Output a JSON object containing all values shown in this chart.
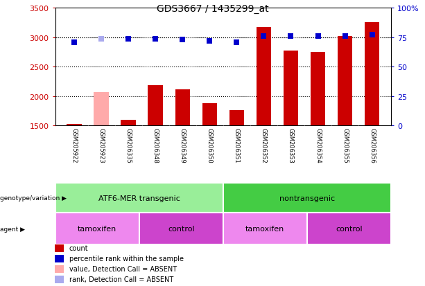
{
  "title": "GDS3667 / 1435299_at",
  "samples": [
    "GSM205922",
    "GSM205923",
    "GSM206335",
    "GSM206348",
    "GSM206349",
    "GSM206350",
    "GSM206351",
    "GSM206352",
    "GSM206353",
    "GSM206354",
    "GSM206355",
    "GSM206356"
  ],
  "counts": [
    1520,
    2070,
    1600,
    2190,
    2110,
    1880,
    1760,
    3170,
    2780,
    2750,
    3020,
    3260
  ],
  "count_absent": [
    false,
    true,
    false,
    false,
    false,
    false,
    false,
    false,
    false,
    false,
    false,
    false
  ],
  "percentile_ranks": [
    71,
    74,
    74,
    74,
    73,
    72,
    71,
    76,
    76,
    76,
    76,
    77
  ],
  "rank_absent": [
    false,
    true,
    false,
    false,
    false,
    false,
    false,
    false,
    false,
    false,
    false,
    false
  ],
  "ylim_left": [
    1500,
    3500
  ],
  "ylim_right": [
    0,
    100
  ],
  "yticks_left": [
    1500,
    2000,
    2500,
    3000,
    3500
  ],
  "yticks_right": [
    0,
    25,
    50,
    75,
    100
  ],
  "yticklabels_right": [
    "0",
    "25",
    "50",
    "75",
    "100%"
  ],
  "bar_color_normal": "#cc0000",
  "bar_color_absent": "#ffaaaa",
  "dot_color_normal": "#0000cc",
  "dot_color_absent": "#aaaaee",
  "dot_size": 30,
  "groups": [
    {
      "label": "ATF6-MER transgenic",
      "start": 0,
      "end": 6,
      "color": "#99ee99"
    },
    {
      "label": "nontransgenic",
      "start": 6,
      "end": 12,
      "color": "#44cc44"
    }
  ],
  "agents": [
    {
      "label": "tamoxifen",
      "start": 0,
      "end": 3,
      "color": "#ee88ee"
    },
    {
      "label": "control",
      "start": 3,
      "end": 6,
      "color": "#cc44cc"
    },
    {
      "label": "tamoxifen",
      "start": 6,
      "end": 9,
      "color": "#ee88ee"
    },
    {
      "label": "control",
      "start": 9,
      "end": 12,
      "color": "#cc44cc"
    }
  ],
  "legend_items": [
    {
      "label": "count",
      "color": "#cc0000"
    },
    {
      "label": "percentile rank within the sample",
      "color": "#0000cc"
    },
    {
      "label": "value, Detection Call = ABSENT",
      "color": "#ffaaaa"
    },
    {
      "label": "rank, Detection Call = ABSENT",
      "color": "#aaaaee"
    }
  ],
  "left_label_color": "#cc0000",
  "right_label_color": "#0000cc",
  "bar_width": 0.55,
  "bg_color": "#ffffff",
  "label_bg_color": "#cccccc",
  "grid_color": "#000000"
}
